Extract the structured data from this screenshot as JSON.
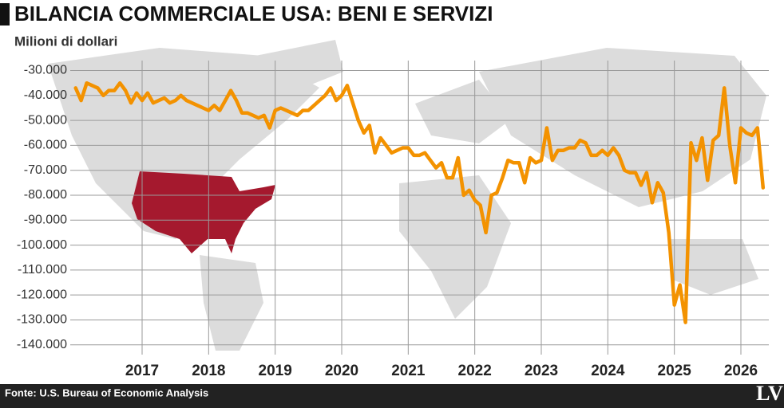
{
  "chart_data": {
    "type": "line",
    "title": "BILANCIA COMMERCIALE USA: BENI E SERVIZI",
    "subtitle": "Milioni di dollari",
    "source": "Fonte: U.S. Bureau of Economic Analysis",
    "logo": "LV",
    "color": "#f39200",
    "grid": true,
    "x": [
      2016,
      2016.083,
      2016.167,
      2016.25,
      2016.333,
      2016.417,
      2016.5,
      2016.583,
      2016.667,
      2016.75,
      2016.833,
      2016.917,
      2017,
      2017.083,
      2017.167,
      2017.25,
      2017.333,
      2017.417,
      2017.5,
      2017.583,
      2017.667,
      2017.75,
      2017.833,
      2017.917,
      2018,
      2018.083,
      2018.167,
      2018.25,
      2018.333,
      2018.417,
      2018.5,
      2018.583,
      2018.667,
      2018.75,
      2018.833,
      2018.917,
      2019,
      2019.083,
      2019.167,
      2019.25,
      2019.333,
      2019.417,
      2019.5,
      2019.583,
      2019.667,
      2019.75,
      2019.833,
      2019.917,
      2020,
      2020.083,
      2020.167,
      2020.25,
      2020.333,
      2020.417,
      2020.5,
      2020.583,
      2020.667,
      2020.75,
      2020.833,
      2020.917,
      2021,
      2021.083,
      2021.167,
      2021.25,
      2021.333,
      2021.417,
      2021.5,
      2021.583,
      2021.667,
      2021.75,
      2021.833,
      2021.917,
      2022,
      2022.083,
      2022.167,
      2022.25,
      2022.333,
      2022.417,
      2022.5,
      2022.583,
      2022.667,
      2022.75,
      2022.833,
      2022.917,
      2023,
      2023.083,
      2023.167,
      2023.25,
      2023.333,
      2023.417,
      2023.5,
      2023.583,
      2023.667,
      2023.75,
      2023.833,
      2023.917,
      2024,
      2024.083,
      2024.167,
      2024.25,
      2024.333,
      2024.417,
      2024.5,
      2024.583,
      2024.667,
      2024.75,
      2024.833,
      2024.917,
      2025,
      2025.083,
      2025.167,
      2025.25,
      2025.333,
      2025.417,
      2025.5,
      2025.583,
      2025.667,
      2025.75,
      2025.833,
      2025.917,
      2026,
      2026.083,
      2026.167,
      2026.25,
      2026.333
    ],
    "values": [
      -37000,
      -42000,
      -35000,
      -36000,
      -37000,
      -40000,
      -38000,
      -38000,
      -35000,
      -38000,
      -43000,
      -39000,
      -42000,
      -39000,
      -43000,
      -42000,
      -41000,
      -43000,
      -42000,
      -40000,
      -42000,
      -43000,
      -44000,
      -45000,
      -46000,
      -44000,
      -46000,
      -42000,
      -38000,
      -42000,
      -47000,
      -47000,
      -48000,
      -49000,
      -48000,
      -53000,
      -46000,
      -45000,
      -46000,
      -47000,
      -48000,
      -46000,
      -46000,
      -44000,
      -42000,
      -40000,
      -37000,
      -42000,
      -40000,
      -36000,
      -43000,
      -50000,
      -55000,
      -52000,
      -63000,
      -57000,
      -60000,
      -63000,
      -62000,
      -61000,
      -61000,
      -64000,
      -64000,
      -63000,
      -66000,
      -69000,
      -67000,
      -73000,
      -73000,
      -65000,
      -80000,
      -78000,
      -82000,
      -84000,
      -95000,
      -80000,
      -79000,
      -73000,
      -66000,
      -67000,
      -67000,
      -75000,
      -65000,
      -67000,
      -66000,
      -53000,
      -66000,
      -62000,
      -62000,
      -61000,
      -61000,
      -58000,
      -59000,
      -64000,
      -64000,
      -62000,
      -64000,
      -61000,
      -64000,
      -70000,
      -71000,
      -71000,
      -76000,
      -71000,
      -83000,
      -75000,
      -79000,
      -95000,
      -124000,
      -116000,
      -131000,
      -59000,
      -66000,
      -57000,
      -74000,
      -58000,
      -56000,
      -37000,
      -60000,
      -75000,
      -53000,
      -55000,
      -56000,
      -53000,
      -77000
    ],
    "xlim": [
      2015.92,
      2026.42
    ],
    "xticks": [
      2017,
      2018,
      2019,
      2020,
      2021,
      2022,
      2023,
      2024,
      2025,
      2026
    ],
    "ylim": [
      -142000,
      -26000
    ],
    "yticks": [
      {
        "value": -30000,
        "label": "-30.000"
      },
      {
        "value": -40000,
        "label": "-40.000"
      },
      {
        "value": -50000,
        "label": "-50.000"
      },
      {
        "value": -60000,
        "label": "-60.000"
      },
      {
        "value": -70000,
        "label": "-70.000"
      },
      {
        "value": -80000,
        "label": "-80.000"
      },
      {
        "value": -90000,
        "label": "-90.000"
      },
      {
        "value": -100000,
        "label": "-100.000"
      },
      {
        "value": -110000,
        "label": "-110.000"
      },
      {
        "value": -120000,
        "label": "-120.000"
      },
      {
        "value": -130000,
        "label": "-130.000"
      },
      {
        "value": -140000,
        "label": "-140.000"
      }
    ]
  }
}
